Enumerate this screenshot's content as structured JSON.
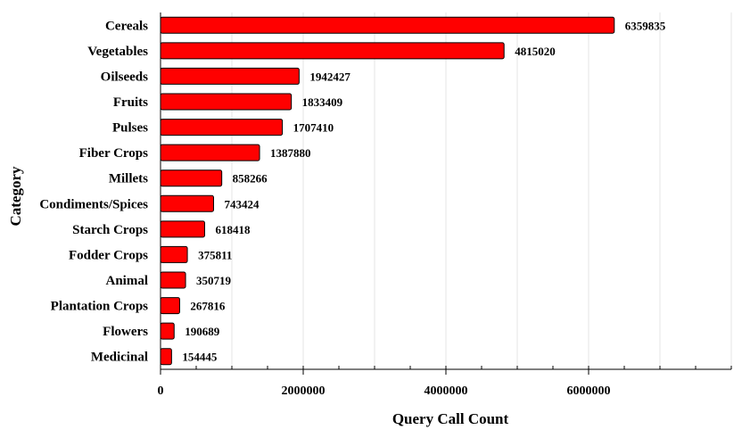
{
  "chart_data": {
    "type": "bar",
    "orientation": "horizontal",
    "title": "",
    "xlabel": "Query Call Count",
    "ylabel": "Category",
    "xlim": [
      0,
      8000000
    ],
    "xticks": [
      0,
      2000000,
      4000000,
      6000000
    ],
    "xtick_labels": [
      "0",
      "2000000",
      "4000000",
      "6000000"
    ],
    "grid": "vertical",
    "legend": "none",
    "bar_color": "#ff0000",
    "categories": [
      "Cereals",
      "Vegetables",
      "Oilseeds",
      "Fruits",
      "Pulses",
      "Fiber Crops",
      "Millets",
      "Condiments/Spices",
      "Starch Crops",
      "Fodder Crops",
      "Animal",
      "Plantation Crops",
      "Flowers",
      "Medicinal"
    ],
    "values": [
      6359835,
      4815020,
      1942427,
      1833409,
      1707410,
      1387880,
      858266,
      743424,
      618418,
      375811,
      350719,
      267816,
      190689,
      154445
    ],
    "value_labels": [
      "6359835",
      "4815020",
      "1942427",
      "1833409",
      "1707410",
      "1387880",
      "858266",
      "743424",
      "618418",
      "375811",
      "350719",
      "267816",
      "190689",
      "154445"
    ]
  }
}
